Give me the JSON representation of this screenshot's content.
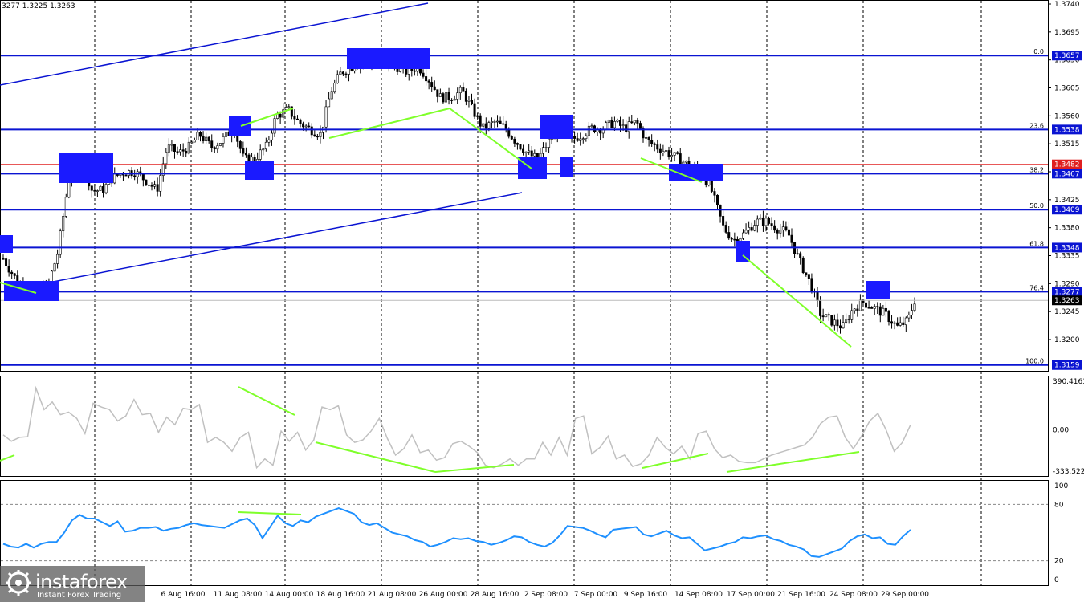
{
  "header": {
    "ohlc": "3277 1.3225 1.3263"
  },
  "logo": {
    "name": "instaforex",
    "tagline": "Instant Forex Trading",
    "icon": "instaforex-logo-icon"
  },
  "colors": {
    "level_line": "#0a14d2",
    "current_line": "#e02020",
    "divergence": "#7fff2a",
    "oscillator": "#c0c0c0",
    "rsi": "#1e90ff",
    "candle": "#000000"
  },
  "chart_data": [
    {
      "type": "candlestick",
      "title": "",
      "ylim": [
        1.3137,
        1.376
      ],
      "y_ticks": [
        "1.3740",
        "1.3695",
        "1.3650",
        "1.3605",
        "1.3560",
        "1.3515",
        "1.3470",
        "1.3425",
        "1.3380",
        "1.3335",
        "1.3290",
        "1.3245",
        "1.3200"
      ],
      "x_tick_labels": [
        "6 Aug 16:00",
        "11 Aug 08:00",
        "14 Aug 00:00",
        "18 Aug 16:00",
        "21 Aug 08:00",
        "26 Aug 00:00",
        "28 Aug 16:00",
        "2 Sep 08:00",
        "7 Sep 00:00",
        "9 Sep 16:00",
        "14 Sep 08:00",
        "17 Sep 00:00",
        "21 Sep 16:00",
        "24 Sep 08:00",
        "29 Sep 00:00"
      ],
      "close_path": [
        [
          0,
          1.333
        ],
        [
          0.9,
          1.329
        ],
        [
          1.8,
          1.3275
        ],
        [
          2.6,
          1.3285
        ],
        [
          3.2,
          1.334
        ],
        [
          3.9,
          1.347
        ],
        [
          4.6,
          1.349
        ],
        [
          5.2,
          1.344
        ],
        [
          5.8,
          1.344
        ],
        [
          6.4,
          1.346
        ],
        [
          7.1,
          1.347
        ],
        [
          7.7,
          1.347
        ],
        [
          8.4,
          1.3455
        ],
        [
          9.0,
          1.344
        ],
        [
          9.6,
          1.351
        ],
        [
          10.3,
          1.35
        ],
        [
          10.9,
          1.351
        ],
        [
          11.5,
          1.353
        ],
        [
          12.2,
          1.351
        ],
        [
          12.8,
          1.352
        ],
        [
          13.5,
          1.354
        ],
        [
          14.1,
          1.349
        ],
        [
          14.7,
          1.349
        ],
        [
          15.4,
          1.351
        ],
        [
          16.0,
          1.356
        ],
        [
          16.7,
          1.357
        ],
        [
          17.3,
          1.355
        ],
        [
          17.9,
          1.354
        ],
        [
          18.6,
          1.353
        ],
        [
          19.2,
          1.36
        ],
        [
          19.8,
          1.363
        ],
        [
          20.5,
          1.364
        ],
        [
          21.1,
          1.365
        ],
        [
          21.8,
          1.364
        ],
        [
          22.4,
          1.364
        ],
        [
          23.0,
          1.364
        ],
        [
          23.7,
          1.363
        ],
        [
          24.3,
          1.364
        ],
        [
          24.9,
          1.362
        ],
        [
          25.6,
          1.359
        ],
        [
          26.2,
          1.359
        ],
        [
          26.9,
          1.36
        ],
        [
          27.5,
          1.357
        ],
        [
          28.1,
          1.354
        ],
        [
          28.8,
          1.355
        ],
        [
          29.4,
          1.354
        ],
        [
          30.0,
          1.352
        ],
        [
          30.7,
          1.35
        ],
        [
          31.3,
          1.349
        ],
        [
          32.0,
          1.352
        ],
        [
          32.6,
          1.354
        ],
        [
          33.2,
          1.352
        ],
        [
          33.9,
          1.353
        ],
        [
          34.5,
          1.354
        ],
        [
          35.1,
          1.354
        ],
        [
          35.8,
          1.355
        ],
        [
          36.4,
          1.354
        ],
        [
          37.1,
          1.355
        ],
        [
          37.7,
          1.352
        ],
        [
          38.3,
          1.351
        ],
        [
          39.0,
          1.35
        ],
        [
          39.6,
          1.349
        ],
        [
          40.2,
          1.348
        ],
        [
          40.9,
          1.347
        ],
        [
          41.5,
          1.344
        ],
        [
          42.2,
          1.338
        ],
        [
          42.8,
          1.336
        ],
        [
          43.4,
          1.337
        ],
        [
          44.1,
          1.339
        ],
        [
          44.7,
          1.339
        ],
        [
          45.3,
          1.338
        ],
        [
          46.0,
          1.337
        ],
        [
          46.6,
          1.333
        ],
        [
          47.3,
          1.329
        ],
        [
          47.9,
          1.324
        ],
        [
          48.5,
          1.323
        ],
        [
          49.2,
          1.322
        ],
        [
          49.8,
          1.325
        ],
        [
          50.4,
          1.326
        ],
        [
          51.1,
          1.325
        ],
        [
          51.7,
          1.324
        ],
        [
          52.4,
          1.322
        ],
        [
          53.0,
          1.323
        ],
        [
          53.4,
          1.3263
        ]
      ],
      "levels": [
        {
          "price": "1.3657",
          "fib": "0.0"
        },
        {
          "price": "1.3538",
          "fib": "23.6"
        },
        {
          "price": "1.3467",
          "fib": "38.2"
        },
        {
          "price": "1.3409",
          "fib": "50.0"
        },
        {
          "price": "1.3348",
          "fib": "61.8"
        },
        {
          "price": "1.3277",
          "fib": "76.4"
        },
        {
          "price": "1.3159",
          "fib": "100.0"
        }
      ],
      "current_price": "1.3263",
      "red_level": "1.3482"
    },
    {
      "type": "line",
      "title": "",
      "scale_labels": [
        "390.4163",
        "0.00",
        "-333.522"
      ],
      "ylim": [
        -333.522,
        390.4163
      ],
      "values": [
        -40,
        -90,
        -60,
        -55,
        330,
        160,
        220,
        120,
        140,
        90,
        -30,
        210,
        180,
        160,
        70,
        110,
        240,
        120,
        130,
        -20,
        100,
        40,
        170,
        160,
        200,
        -100,
        -60,
        -100,
        -170,
        -60,
        -20,
        -300,
        -230,
        -280,
        -10,
        -90,
        -20,
        -160,
        -80,
        180,
        160,
        190,
        -40,
        -100,
        -80,
        -10,
        90,
        -70,
        -200,
        -150,
        -40,
        -180,
        -160,
        -240,
        -220,
        -110,
        -90,
        -130,
        -180,
        -280,
        -300,
        -270,
        -230,
        -280,
        -230,
        -230,
        -100,
        -200,
        -60,
        -200,
        90,
        110,
        -190,
        -140,
        -50,
        -230,
        -200,
        -290,
        -270,
        -200,
        -60,
        -140,
        -190,
        -130,
        -230,
        -30,
        -10,
        -150,
        -220,
        -200,
        -250,
        -260,
        -260,
        -230,
        -200,
        -180,
        -160,
        -140,
        -120,
        -60,
        50,
        100,
        110,
        -60,
        -150,
        -50,
        70,
        130,
        0,
        -170,
        -100,
        40
      ]
    },
    {
      "type": "line",
      "title": "",
      "scale_labels": [
        "100",
        "80",
        "20",
        "0"
      ],
      "ylim": [
        0,
        100
      ],
      "values": [
        38,
        35,
        34,
        38,
        34,
        38,
        40,
        40,
        50,
        63,
        69,
        65,
        65,
        61,
        57,
        62,
        51,
        52,
        55,
        55,
        56,
        52,
        54,
        55,
        58,
        60,
        58,
        57,
        56,
        55,
        59,
        63,
        65,
        58,
        44,
        56,
        68,
        60,
        57,
        63,
        61,
        67,
        70,
        73,
        76,
        73,
        70,
        61,
        58,
        60,
        55,
        50,
        48,
        46,
        42,
        40,
        35,
        37,
        40,
        44,
        43,
        44,
        41,
        40,
        37,
        39,
        42,
        46,
        45,
        40,
        37,
        35,
        39,
        47,
        57,
        56,
        55,
        52,
        48,
        45,
        53,
        54,
        55,
        56,
        48,
        46,
        49,
        52,
        47,
        44,
        45,
        38,
        31,
        33,
        35,
        38,
        40,
        45,
        44,
        46,
        47,
        43,
        41,
        37,
        35,
        32,
        25,
        24,
        27,
        30,
        33,
        41,
        46,
        48,
        44,
        45,
        38,
        37,
        46,
        53
      ]
    }
  ]
}
